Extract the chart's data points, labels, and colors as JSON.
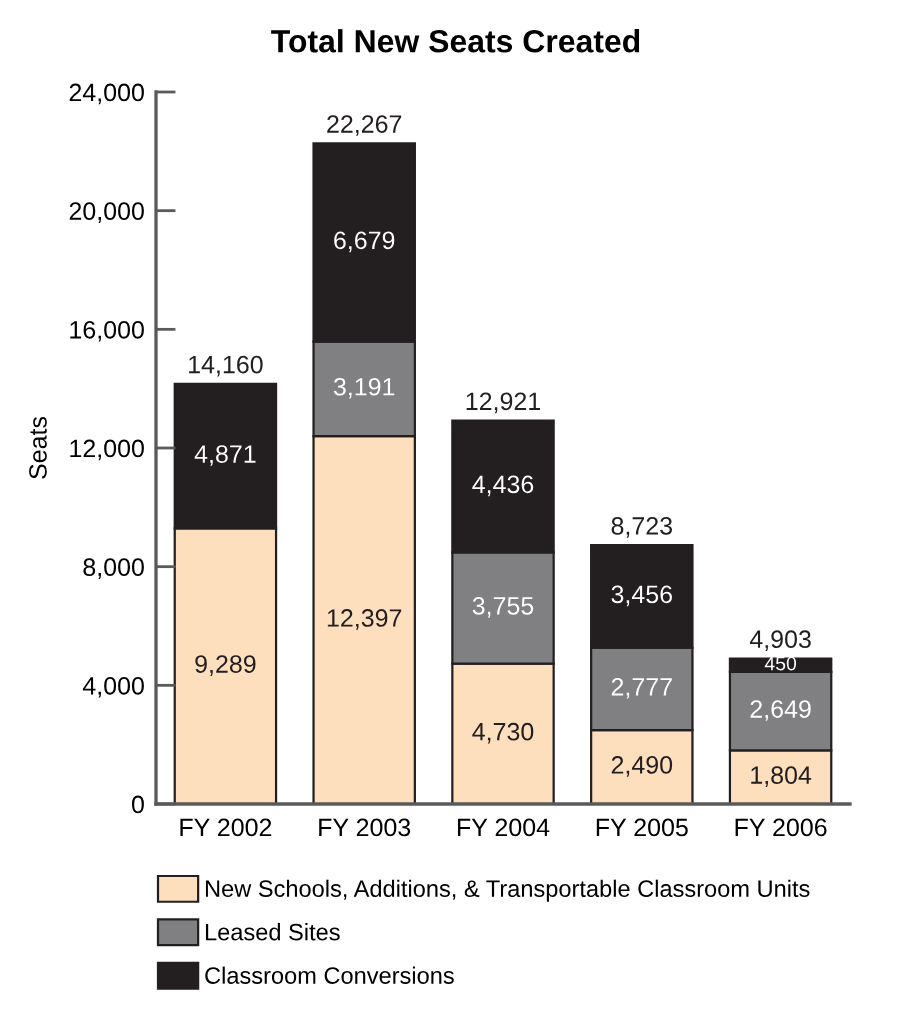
{
  "chart_data": {
    "type": "bar",
    "stacked": true,
    "title": "Total New Seats Created",
    "ylabel": "Seats",
    "categories": [
      "FY 2002",
      "FY 2003",
      "FY 2004",
      "FY 2005",
      "FY 2006"
    ],
    "series": [
      {
        "name": "New Schools, Additions, & Transportable Classroom Units",
        "color": "#fddfbd",
        "values": [
          9289,
          12397,
          4730,
          2490,
          1804
        ],
        "value_labels": [
          "9,289",
          "12,397",
          "4,730",
          "2,490",
          "1,804"
        ]
      },
      {
        "name": "Leased Sites",
        "color": "#808083",
        "values": [
          null,
          3191,
          3755,
          2777,
          2649
        ],
        "value_labels": [
          null,
          "3,191",
          "3,755",
          "2,777",
          "2,649"
        ]
      },
      {
        "name": "Classroom Conversions",
        "color": "#231f20",
        "values": [
          4871,
          6679,
          4436,
          3456,
          450
        ],
        "value_labels": [
          "4,871",
          "6,679",
          "4,436",
          "3,456",
          "450"
        ]
      }
    ],
    "totals": [
      "14,160",
      "22,267",
      "12,921",
      "8,723",
      "4,903"
    ],
    "ylim": [
      0,
      24000
    ],
    "yticks": [
      0,
      {
        "value": 4000,
        "label": "4,000"
      },
      {
        "value": 8000,
        "label": "8,000"
      },
      {
        "value": 12000,
        "label": "12,000"
      },
      {
        "value": 16000,
        "label": "16,000"
      },
      {
        "value": 20000,
        "label": "20,000"
      },
      {
        "value": 24000,
        "label": "24,000"
      }
    ],
    "legend": "bottom"
  }
}
